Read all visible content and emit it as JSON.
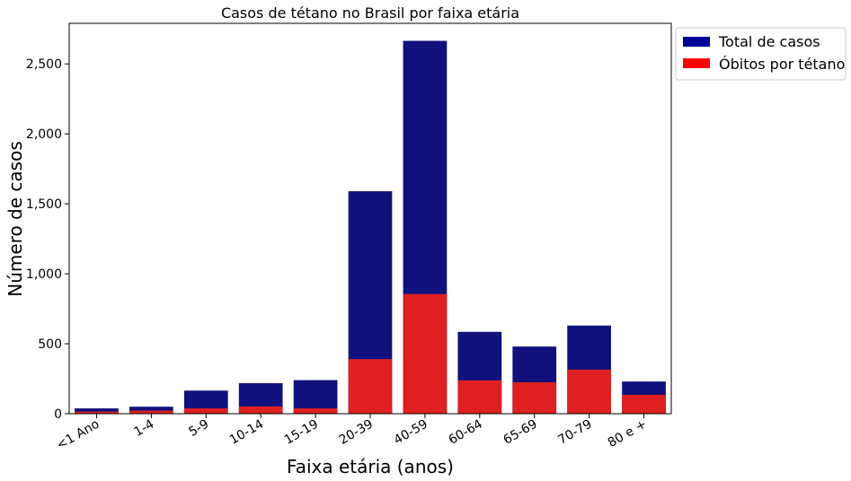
{
  "chart_data": {
    "type": "bar",
    "title": "Casos de tétano no Brasil por faixa etária",
    "xlabel": "Faixa etária (anos)",
    "ylabel": "Número de casos",
    "categories": [
      "<1 Ano",
      "1-4",
      "5-9",
      "10-14",
      "15-19",
      "20-39",
      "40-59",
      "60-64",
      "65-69",
      "70-79",
      "80 e +"
    ],
    "series": [
      {
        "name": "Total de casos",
        "color": "#11117e",
        "values": [
          38,
          50,
          165,
          218,
          240,
          1590,
          2665,
          585,
          480,
          630,
          230
        ]
      },
      {
        "name": "Óbitos por tétano",
        "color": "#de2020",
        "values": [
          15,
          22,
          38,
          52,
          38,
          390,
          855,
          238,
          225,
          315,
          135
        ]
      }
    ],
    "legend_colors": [
      "#000096",
      "#ff0000"
    ],
    "ylim": [
      0,
      2790
    ],
    "yticks": [
      0,
      500,
      1000,
      1500,
      2000,
      2500
    ],
    "ytick_labels": [
      "0",
      "500",
      "1,000",
      "1,500",
      "2,000",
      "2,500"
    ],
    "legend_position": "outside-top-right",
    "grid": false
  }
}
